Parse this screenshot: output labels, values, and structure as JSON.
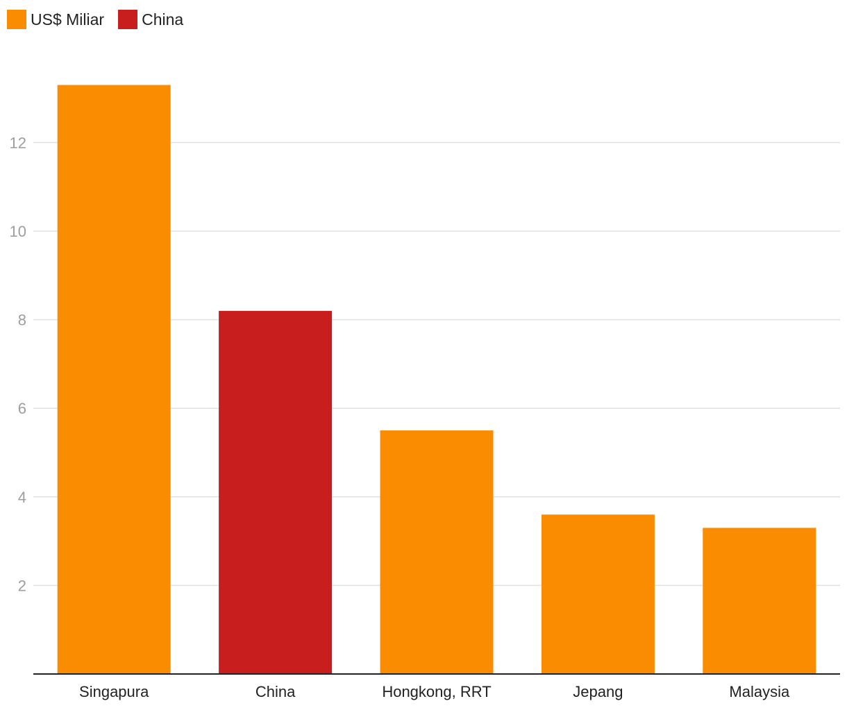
{
  "chart_data": {
    "type": "bar",
    "categories": [
      "Singapura",
      "China",
      "Hongkong, RRT",
      "Jepang",
      "Malaysia"
    ],
    "values": [
      13.3,
      8.2,
      5.5,
      3.6,
      3.3
    ],
    "highlight": [
      "US$ Miliar",
      "China",
      "US$ Miliar",
      "US$ Miliar",
      "US$ Miliar"
    ],
    "legend": [
      {
        "label": "US$ Miliar",
        "color": "#f98c00"
      },
      {
        "label": "China",
        "color": "#c91e1e"
      }
    ],
    "y_ticks": [
      2,
      4,
      6,
      8,
      10,
      12
    ],
    "ylim": [
      0,
      14.6
    ],
    "grid": true,
    "legend_position": "top-left",
    "title": "",
    "xlabel": "",
    "ylabel": ""
  }
}
